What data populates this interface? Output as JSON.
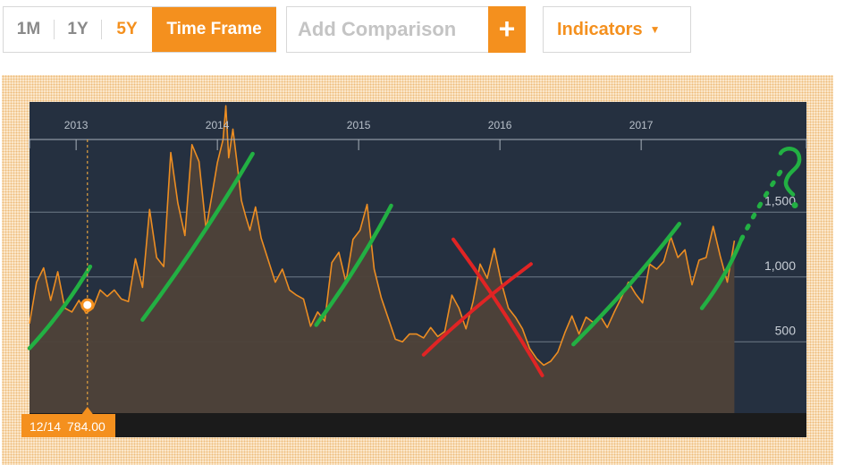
{
  "toolbar": {
    "range_buttons": [
      "1M",
      "1Y",
      "5Y"
    ],
    "active_range": "5Y",
    "time_frame_label": "Time Frame",
    "compare_placeholder": "Add Comparison",
    "add_label": "+",
    "indicators_label": "Indicators",
    "indicators_caret": "▼"
  },
  "colors": {
    "accent": "#f4901e",
    "plot_background": "#253040",
    "price_line": "#ec8d22",
    "annotation_green": "#22b043",
    "annotation_red": "#e02424"
  },
  "readout": {
    "date": "12/14",
    "value": "784.00"
  },
  "chart_data": {
    "type": "area",
    "title": "",
    "xlabel": "",
    "ylabel": "",
    "x_ticks": [
      "2013",
      "2014",
      "2015",
      "2016",
      "2017"
    ],
    "y_ticks": [
      "500",
      "1,000",
      "1,500"
    ],
    "y_tick_values": [
      500,
      1000,
      1500
    ],
    "ylim": [
      -50,
      2350
    ],
    "xlim": [
      2012.67,
      2018.17
    ],
    "grid": "horizontal",
    "legend": "none",
    "series": [
      {
        "x": [
          2012.67,
          2012.72,
          2012.77,
          2012.82,
          2012.87,
          2012.92,
          2012.97,
          2013.02,
          2013.07,
          2013.12,
          2013.17,
          2013.22,
          2013.27,
          2013.32,
          2013.37,
          2013.42,
          2013.47,
          2013.52,
          2013.57,
          2013.62,
          2013.67,
          2013.72,
          2013.77,
          2013.82,
          2013.87,
          2013.92,
          2013.96,
          2014.0,
          2014.04,
          2014.06,
          2014.08,
          2014.11,
          2014.14,
          2014.17,
          2014.2,
          2014.23,
          2014.27,
          2014.31,
          2014.36,
          2014.41,
          2014.46,
          2014.51,
          2014.56,
          2014.61,
          2014.66,
          2014.71,
          2014.76,
          2014.81,
          2014.86,
          2014.91,
          2014.96,
          2015.01,
          2015.06,
          2015.11,
          2015.16,
          2015.21,
          2015.26,
          2015.31,
          2015.36,
          2015.41,
          2015.46,
          2015.51,
          2015.56,
          2015.61,
          2015.66,
          2015.71,
          2015.76,
          2015.81,
          2015.86,
          2015.91,
          2015.96,
          2016.01,
          2016.06,
          2016.11,
          2016.16,
          2016.21,
          2016.26,
          2016.31,
          2016.36,
          2016.41,
          2016.46,
          2016.51,
          2016.56,
          2016.61,
          2016.66,
          2016.71,
          2016.76,
          2016.81,
          2016.86,
          2016.91,
          2016.96,
          2017.01,
          2017.06,
          2017.11,
          2017.16,
          2017.21,
          2017.26,
          2017.31,
          2017.36,
          2017.41,
          2017.46,
          2017.51,
          2017.56,
          2017.61,
          2017.66
        ],
        "values": [
          640,
          960,
          1070,
          820,
          1040,
          760,
          730,
          820,
          720,
          760,
          900,
          850,
          900,
          830,
          810,
          1140,
          920,
          1520,
          1150,
          1080,
          1960,
          1570,
          1320,
          2020,
          1890,
          1370,
          1620,
          1880,
          2060,
          2320,
          1920,
          2140,
          1870,
          1590,
          1470,
          1360,
          1540,
          1300,
          1130,
          960,
          1060,
          900,
          860,
          830,
          620,
          730,
          660,
          1110,
          1190,
          960,
          1290,
          1360,
          1560,
          1060,
          840,
          680,
          520,
          500,
          560,
          560,
          530,
          610,
          540,
          580,
          860,
          760,
          600,
          810,
          1100,
          990,
          1220,
          960,
          760,
          690,
          600,
          450,
          370,
          320,
          350,
          420,
          570,
          700,
          560,
          690,
          650,
          700,
          610,
          730,
          840,
          960,
          870,
          800,
          1100,
          1060,
          1120,
          1310,
          1150,
          1210,
          940,
          1130,
          1150,
          1390,
          1160,
          960,
          1280
        ]
      }
    ],
    "annotations": [
      {
        "type": "green-uptrend-stroke",
        "from": [
          2012.67,
          450
        ],
        "to": [
          2013.1,
          1080
        ]
      },
      {
        "type": "green-uptrend-stroke",
        "from": [
          2013.47,
          670
        ],
        "to": [
          2014.25,
          1950
        ]
      },
      {
        "type": "green-uptrend-stroke",
        "from": [
          2014.7,
          630
        ],
        "to": [
          2015.23,
          1550
        ]
      },
      {
        "type": "red-cross-stroke",
        "from": [
          2015.46,
          400
        ],
        "to": [
          2016.22,
          1100
        ]
      },
      {
        "type": "red-cross-stroke",
        "from": [
          2015.67,
          1290
        ],
        "to": [
          2016.3,
          240
        ]
      },
      {
        "type": "green-uptrend-stroke",
        "from": [
          2016.52,
          480
        ],
        "to": [
          2017.27,
          1410
        ]
      },
      {
        "type": "green-uptrend-stroke",
        "from": [
          2017.43,
          760
        ],
        "to": [
          2017.71,
          1290
        ]
      },
      {
        "type": "green-dotted-projection",
        "from": [
          2017.71,
          1290
        ],
        "to": [
          2018.01,
          1850
        ]
      },
      {
        "type": "handwritten-question-mark",
        "at": [
          2018.05,
          1760
        ]
      }
    ],
    "highlight_point": {
      "x": 2013.08,
      "y": 784
    }
  }
}
